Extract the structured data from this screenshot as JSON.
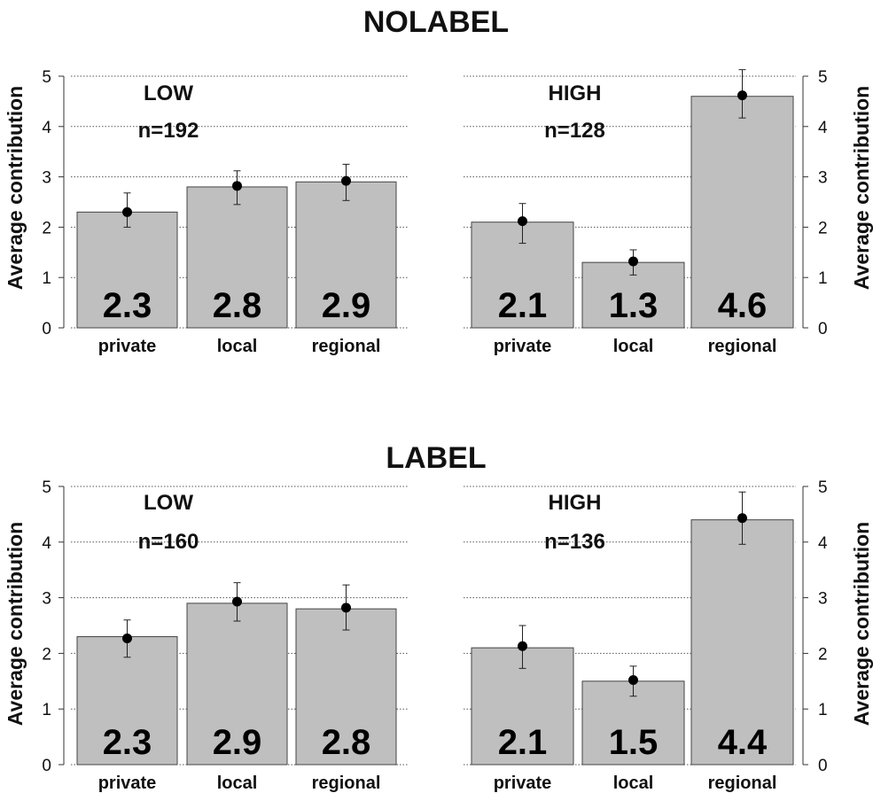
{
  "chart_data": [
    {
      "type": "bar",
      "title": "NOLABEL",
      "ylabel": "Average contribution",
      "ylim": [
        0,
        5
      ],
      "yticks": [
        0,
        1,
        2,
        3,
        4,
        5
      ],
      "grid": true,
      "categories": [
        "private",
        "local",
        "regional"
      ],
      "panels": [
        {
          "label": "LOW",
          "n_label": "n=192",
          "axis_side": "left",
          "values": [
            2.3,
            2.8,
            2.9
          ],
          "value_labels": [
            "2.3",
            "2.8",
            "2.9"
          ],
          "points": [
            2.3,
            2.82,
            2.92
          ],
          "ci_low": [
            2.0,
            2.45,
            2.53
          ],
          "ci_high": [
            2.68,
            3.12,
            3.25
          ]
        },
        {
          "label": "HIGH",
          "n_label": "n=128",
          "axis_side": "right",
          "values": [
            2.1,
            1.3,
            4.6
          ],
          "value_labels": [
            "2.1",
            "1.3",
            "4.6"
          ],
          "points": [
            2.12,
            1.32,
            4.62
          ],
          "ci_low": [
            1.68,
            1.05,
            4.17
          ],
          "ci_high": [
            2.47,
            1.55,
            5.13
          ]
        }
      ]
    },
    {
      "type": "bar",
      "title": "LABEL",
      "ylabel": "Average contribution",
      "ylim": [
        0,
        5
      ],
      "yticks": [
        0,
        1,
        2,
        3,
        4,
        5
      ],
      "grid": true,
      "categories": [
        "private",
        "local",
        "regional"
      ],
      "panels": [
        {
          "label": "LOW",
          "n_label": "n=160",
          "axis_side": "left",
          "values": [
            2.3,
            2.9,
            2.8
          ],
          "value_labels": [
            "2.3",
            "2.9",
            "2.8"
          ],
          "points": [
            2.27,
            2.93,
            2.82
          ],
          "ci_low": [
            1.93,
            2.58,
            2.42
          ],
          "ci_high": [
            2.6,
            3.27,
            3.23
          ]
        },
        {
          "label": "HIGH",
          "n_label": "n=136",
          "axis_side": "right",
          "values": [
            2.1,
            1.5,
            4.4
          ],
          "value_labels": [
            "2.1",
            "1.5",
            "4.4"
          ],
          "points": [
            2.13,
            1.52,
            4.43
          ],
          "ci_low": [
            1.73,
            1.23,
            3.96
          ],
          "ci_high": [
            2.5,
            1.77,
            4.9
          ]
        }
      ]
    }
  ]
}
